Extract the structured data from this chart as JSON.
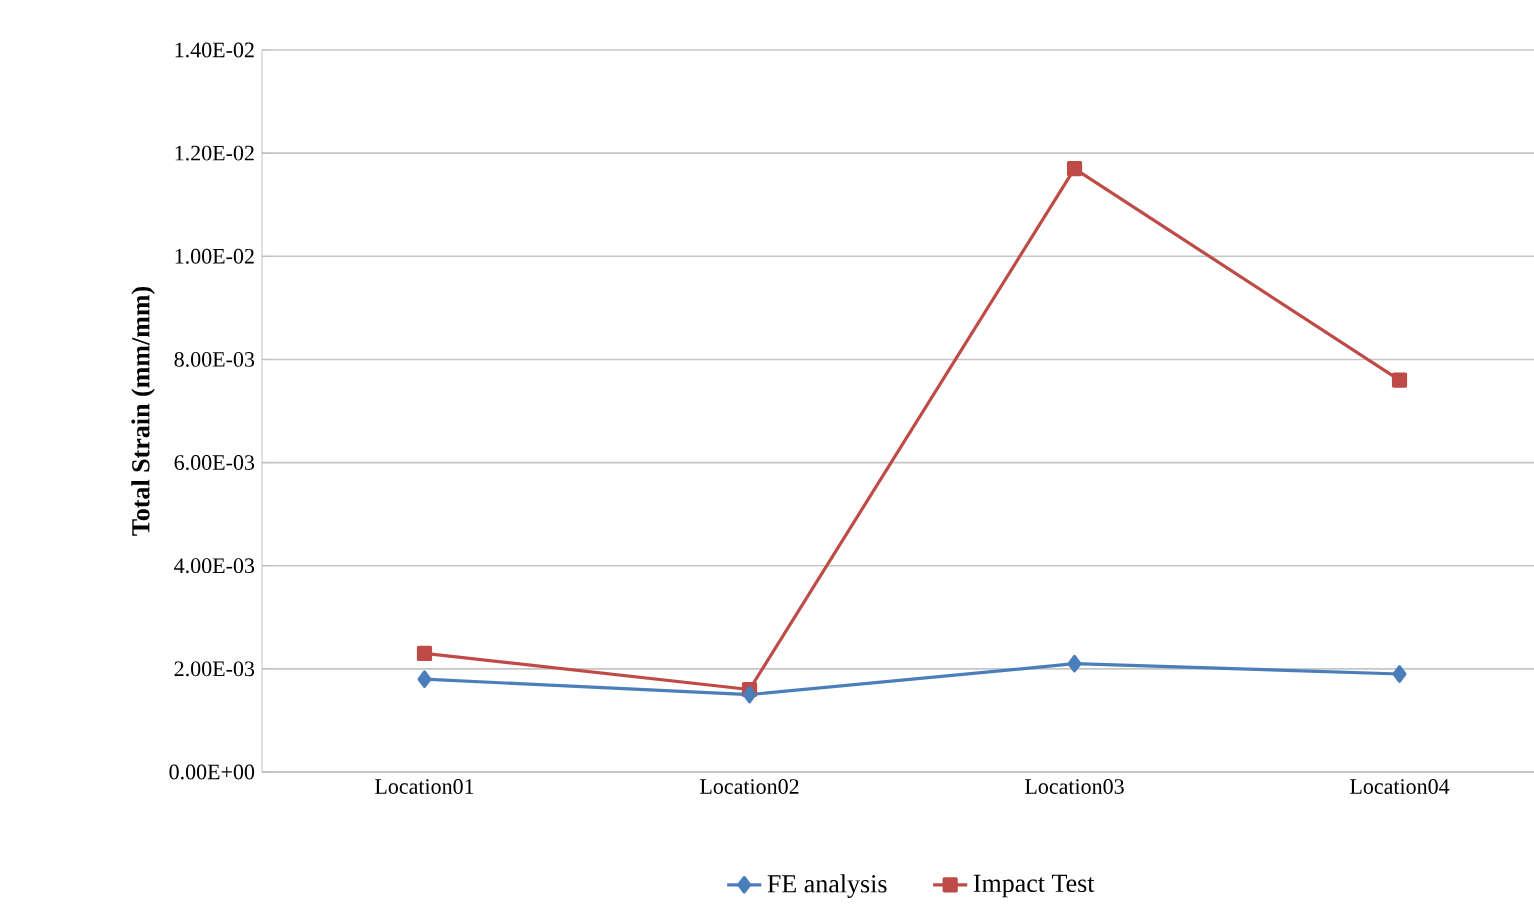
{
  "chart_data": {
    "type": "line",
    "ylabel": "Total Strain (mm/mm)",
    "categories": [
      "Location01",
      "Location02",
      "Location03",
      "Location04"
    ],
    "series": [
      {
        "name": "FE analysis",
        "color": "#4a7ebb",
        "marker": "diamond",
        "values": [
          0.0018,
          0.0015,
          0.0021,
          0.0019
        ]
      },
      {
        "name": "Impact Test",
        "color": "#be4b48",
        "marker": "square",
        "values": [
          0.0023,
          0.0016,
          0.0117,
          0.0076
        ]
      }
    ],
    "ylim": [
      0,
      0.014
    ],
    "yticks": [
      {
        "value": 0,
        "label": "0.00E+00"
      },
      {
        "value": 0.002,
        "label": "2.00E-03"
      },
      {
        "value": 0.004,
        "label": "4.00E-03"
      },
      {
        "value": 0.006,
        "label": "6.00E-03"
      },
      {
        "value": 0.008,
        "label": "8.00E-03"
      },
      {
        "value": 0.01,
        "label": "1.00E-02"
      },
      {
        "value": 0.012,
        "label": "1.20E-02"
      },
      {
        "value": 0.014,
        "label": "1.40E-02"
      }
    ],
    "grid": "y",
    "legend": "bottom"
  }
}
